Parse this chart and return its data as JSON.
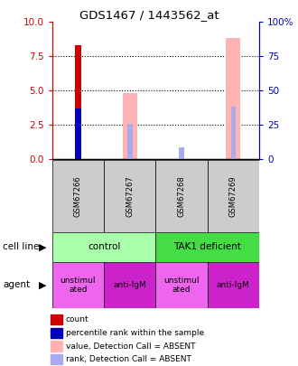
{
  "title": "GDS1467 / 1443562_at",
  "samples": [
    "GSM67266",
    "GSM67267",
    "GSM67268",
    "GSM67269"
  ],
  "ylim_left": [
    0,
    10
  ],
  "ylim_right": [
    0,
    100
  ],
  "yticks_left": [
    0,
    2.5,
    5,
    7.5,
    10
  ],
  "yticks_right": [
    0,
    25,
    50,
    75,
    100
  ],
  "bars": {
    "red_value": [
      8.3,
      0,
      0,
      0
    ],
    "blue_value": [
      3.7,
      0,
      0,
      0
    ],
    "pink_value": [
      0,
      4.85,
      0,
      8.85
    ],
    "blue_absent_value": [
      0,
      2.6,
      0.85,
      3.8
    ]
  },
  "colors": {
    "red": "#cc0000",
    "blue": "#0000bb",
    "pink": "#ffb3b3",
    "blue_absent": "#aaaaee",
    "cell_line_control": "#aaffaa",
    "cell_line_tak1": "#44dd44",
    "agent_unstim": "#ee66ee",
    "agent_antilgm": "#cc22cc",
    "sample_box_bg": "#cccccc",
    "left_axis_color": "#cc0000",
    "right_axis_color": "#0000bb"
  },
  "cell_line_labels": [
    "control",
    "TAK1 deficient"
  ],
  "agent_labels": [
    "unstimul\nated",
    "anti-IgM",
    "unstimul\nated",
    "anti-IgM"
  ],
  "legend_items": [
    {
      "color": "#cc0000",
      "label": "count"
    },
    {
      "color": "#0000bb",
      "label": "percentile rank within the sample"
    },
    {
      "color": "#ffb3b3",
      "label": "value, Detection Call = ABSENT"
    },
    {
      "color": "#aaaaee",
      "label": "rank, Detection Call = ABSENT"
    }
  ]
}
